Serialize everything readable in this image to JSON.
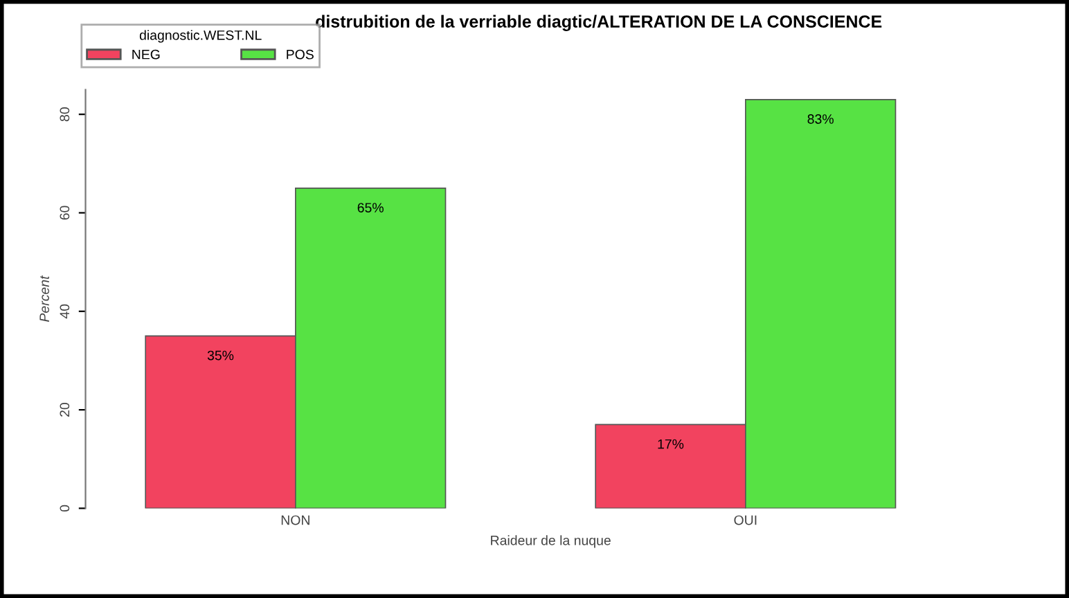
{
  "chart_data": {
    "type": "bar",
    "title": "distrubition de la verriable diagtic/ALTERATION DE LA CONSCIENCE",
    "xlabel": "Raideur de la nuque",
    "ylabel": "Percent",
    "legend_title": "diagnostic.WEST.NL",
    "categories": [
      "NON",
      "OUI"
    ],
    "series": [
      {
        "name": "NEG",
        "color": "#f2435f",
        "values": [
          35,
          17
        ],
        "value_labels": [
          "35%",
          "17%"
        ]
      },
      {
        "name": "POS",
        "color": "#57e244",
        "values": [
          65,
          83
        ],
        "value_labels": [
          "65%",
          "83%"
        ]
      }
    ],
    "ylim": [
      0,
      85
    ],
    "yticks": [
      0,
      20,
      40,
      60,
      80
    ],
    "legend": "top left",
    "grid": false
  }
}
